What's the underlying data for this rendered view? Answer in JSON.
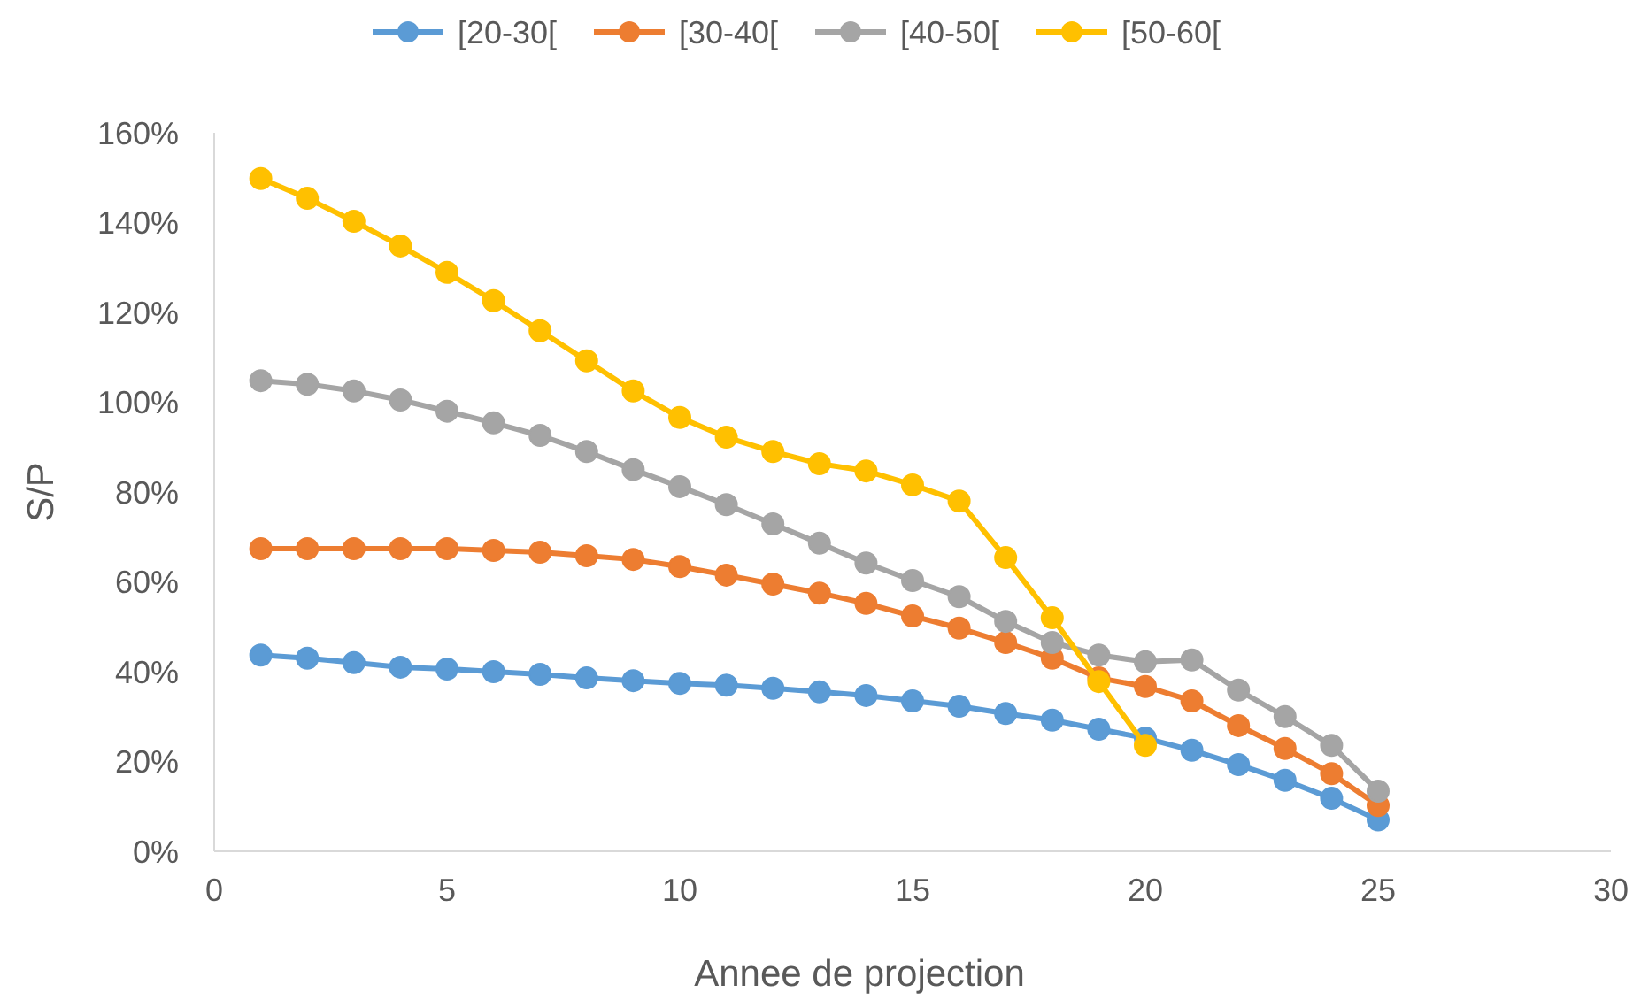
{
  "chart_data": {
    "type": "line",
    "xlabel": "Annee de projection",
    "ylabel": "S/P",
    "x": [
      1,
      2,
      3,
      4,
      5,
      6,
      7,
      8,
      9,
      10,
      11,
      12,
      13,
      14,
      15,
      16,
      17,
      18,
      19,
      20,
      21,
      22,
      23,
      24,
      25
    ],
    "series": [
      {
        "name": "[20-30[",
        "color": "#5b9bd5",
        "values": [
          43.7,
          43,
          42,
          41,
          40.6,
          40,
          39.4,
          38.6,
          38,
          37.4,
          37,
          36.3,
          35.5,
          34.7,
          33.5,
          32.3,
          30.7,
          29.2,
          27.2,
          25.2,
          22.5,
          19.3,
          15.8,
          11.8,
          7
        ]
      },
      {
        "name": "[30-40[",
        "color": "#ed7d31",
        "values": [
          67.4,
          67.4,
          67.4,
          67.4,
          67.4,
          67,
          66.6,
          65.8,
          65,
          63.4,
          61.5,
          59.5,
          57.5,
          55.2,
          52.4,
          49.7,
          46.5,
          43,
          38.6,
          36.7,
          33.5,
          28,
          22.9,
          17.3,
          10.2
        ]
      },
      {
        "name": "[40-50[",
        "color": "#a5a5a5",
        "values": [
          104.8,
          104,
          102.5,
          100.5,
          98,
          95.4,
          92.6,
          89,
          85,
          81.2,
          77.2,
          72.9,
          68.6,
          64.2,
          60.3,
          56.7,
          51.2,
          46.5,
          43.7,
          42.2,
          42.6,
          35.9,
          30,
          23.6,
          13.4
        ]
      },
      {
        "name": "[50-60[",
        "color": "#ffc000",
        "values": [
          149.8,
          145.4,
          140.3,
          134.8,
          128.9,
          122.6,
          115.9,
          109.2,
          102.5,
          96.6,
          92.2,
          89,
          86.3,
          84.7,
          81.6,
          78,
          65.4,
          52,
          37.8,
          23.6,
          null,
          null,
          null,
          null,
          null
        ]
      }
    ],
    "xlim": [
      0,
      30
    ],
    "xticks": [
      0,
      5,
      10,
      15,
      20,
      25,
      30
    ],
    "ylim": [
      0,
      160
    ],
    "yticks": [
      {
        "value": 0,
        "label": "0%"
      },
      {
        "value": 20,
        "label": "20%"
      },
      {
        "value": 40,
        "label": "40%"
      },
      {
        "value": 60,
        "label": "60%"
      },
      {
        "value": 80,
        "label": "80%"
      },
      {
        "value": 100,
        "label": "100%"
      },
      {
        "value": 120,
        "label": "120%"
      },
      {
        "value": 140,
        "label": "140%"
      },
      {
        "value": 160,
        "label": "160%"
      }
    ],
    "legend": "top",
    "marker": "circle",
    "line_style": "solid"
  }
}
